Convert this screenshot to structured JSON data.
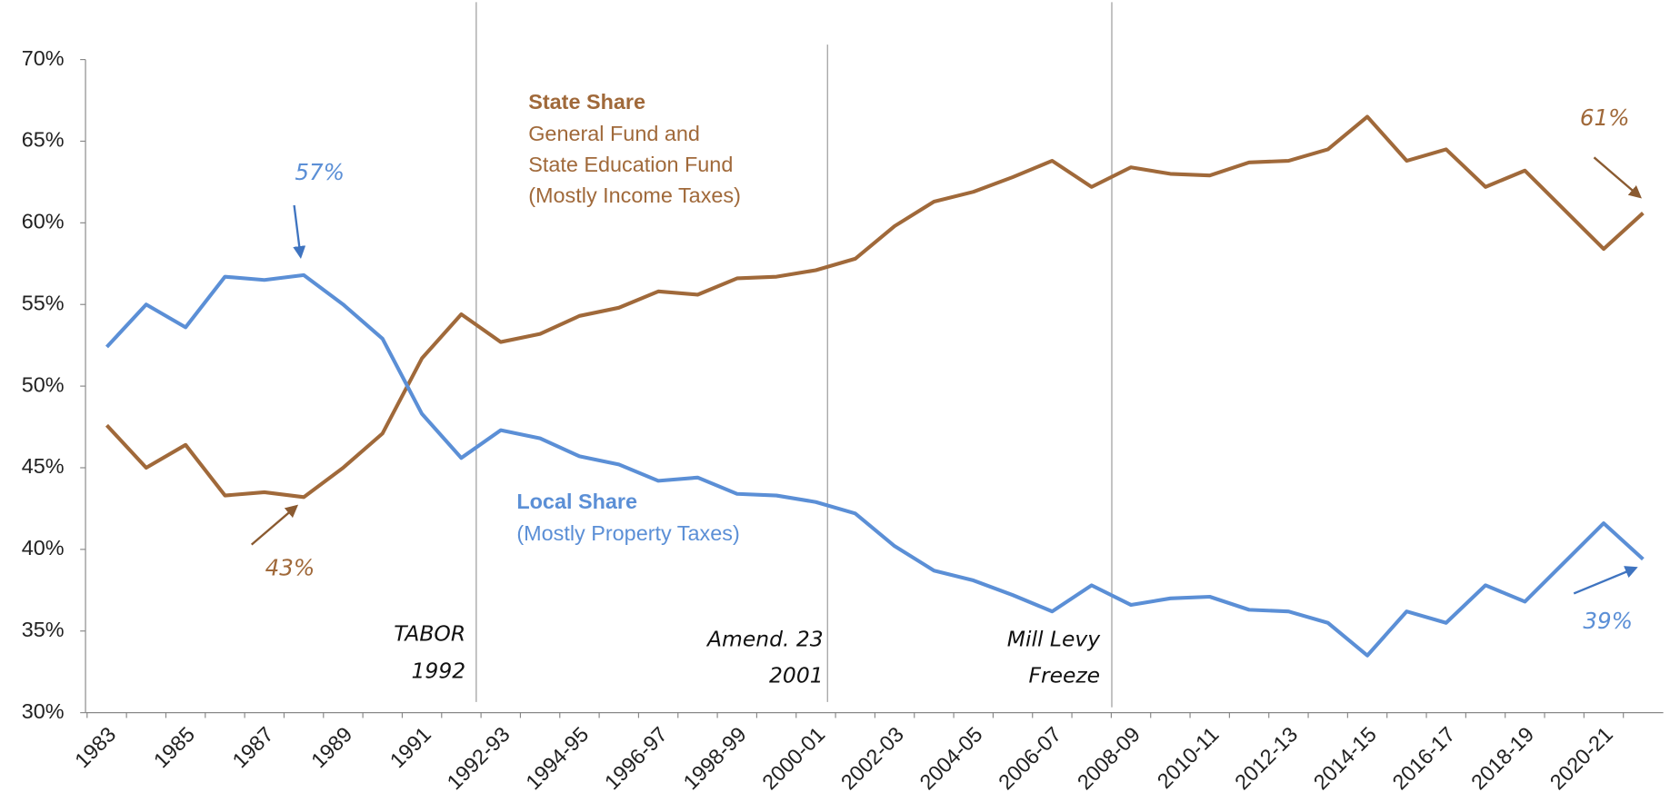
{
  "chart_data": {
    "type": "line",
    "categories": [
      "1983",
      null,
      "1985",
      null,
      "1987",
      null,
      "1989",
      null,
      "1991",
      null,
      "1992-93",
      null,
      "1994-95",
      null,
      "1996-97",
      null,
      "1998-99",
      null,
      "2000-01",
      null,
      "2002-03",
      null,
      "2004-05",
      null,
      "2006-07",
      null,
      "2008-09",
      null,
      "2010-11",
      null,
      "2012-13",
      null,
      "2014-15",
      null,
      "2016-17",
      null,
      "2018-19",
      null,
      "2020-21",
      null
    ],
    "series": [
      {
        "name": "State Share",
        "color": "#a0693a",
        "values": [
          47.6,
          45.0,
          46.4,
          43.3,
          43.5,
          43.2,
          45.0,
          47.1,
          51.7,
          54.4,
          52.7,
          53.2,
          54.3,
          54.8,
          55.8,
          55.6,
          56.6,
          56.7,
          57.1,
          57.8,
          59.8,
          61.3,
          61.9,
          62.8,
          63.8,
          62.2,
          63.4,
          63.0,
          62.9,
          63.7,
          63.8,
          64.5,
          66.5,
          63.8,
          64.5,
          62.2,
          63.2,
          60.8,
          58.4,
          60.6
        ]
      },
      {
        "name": "Local Share",
        "color": "#5b8fd6",
        "values": [
          52.4,
          55.0,
          53.6,
          56.7,
          56.5,
          56.8,
          55.0,
          52.9,
          48.3,
          45.6,
          47.3,
          46.8,
          45.7,
          45.2,
          44.2,
          44.4,
          43.4,
          43.3,
          42.9,
          42.2,
          40.2,
          38.7,
          38.1,
          37.2,
          36.2,
          37.8,
          36.6,
          37.0,
          37.1,
          36.3,
          36.2,
          35.5,
          33.5,
          36.2,
          35.5,
          37.8,
          36.8,
          39.2,
          41.6,
          39.4
        ]
      }
    ],
    "ylim": [
      30,
      70
    ],
    "yticks": [
      {
        "value": 30,
        "label": "30%"
      },
      {
        "value": 35,
        "label": "35%"
      },
      {
        "value": 40,
        "label": "40%"
      },
      {
        "value": 45,
        "label": "45%"
      },
      {
        "value": 50,
        "label": "50%"
      },
      {
        "value": 55,
        "label": "55%"
      },
      {
        "value": 60,
        "label": "60%"
      },
      {
        "value": 65,
        "label": "65%"
      },
      {
        "value": 70,
        "label": "70%"
      }
    ],
    "annotations": [
      "General Fund and",
      "State Education Fund",
      "(Mostly Income Taxes)",
      "(Mostly Property Taxes)",
      "57%",
      "43%",
      "61%",
      "39%",
      "TABOR",
      "1992",
      "Amend. 23",
      "2001",
      "Mill Levy",
      "Freeze"
    ]
  }
}
